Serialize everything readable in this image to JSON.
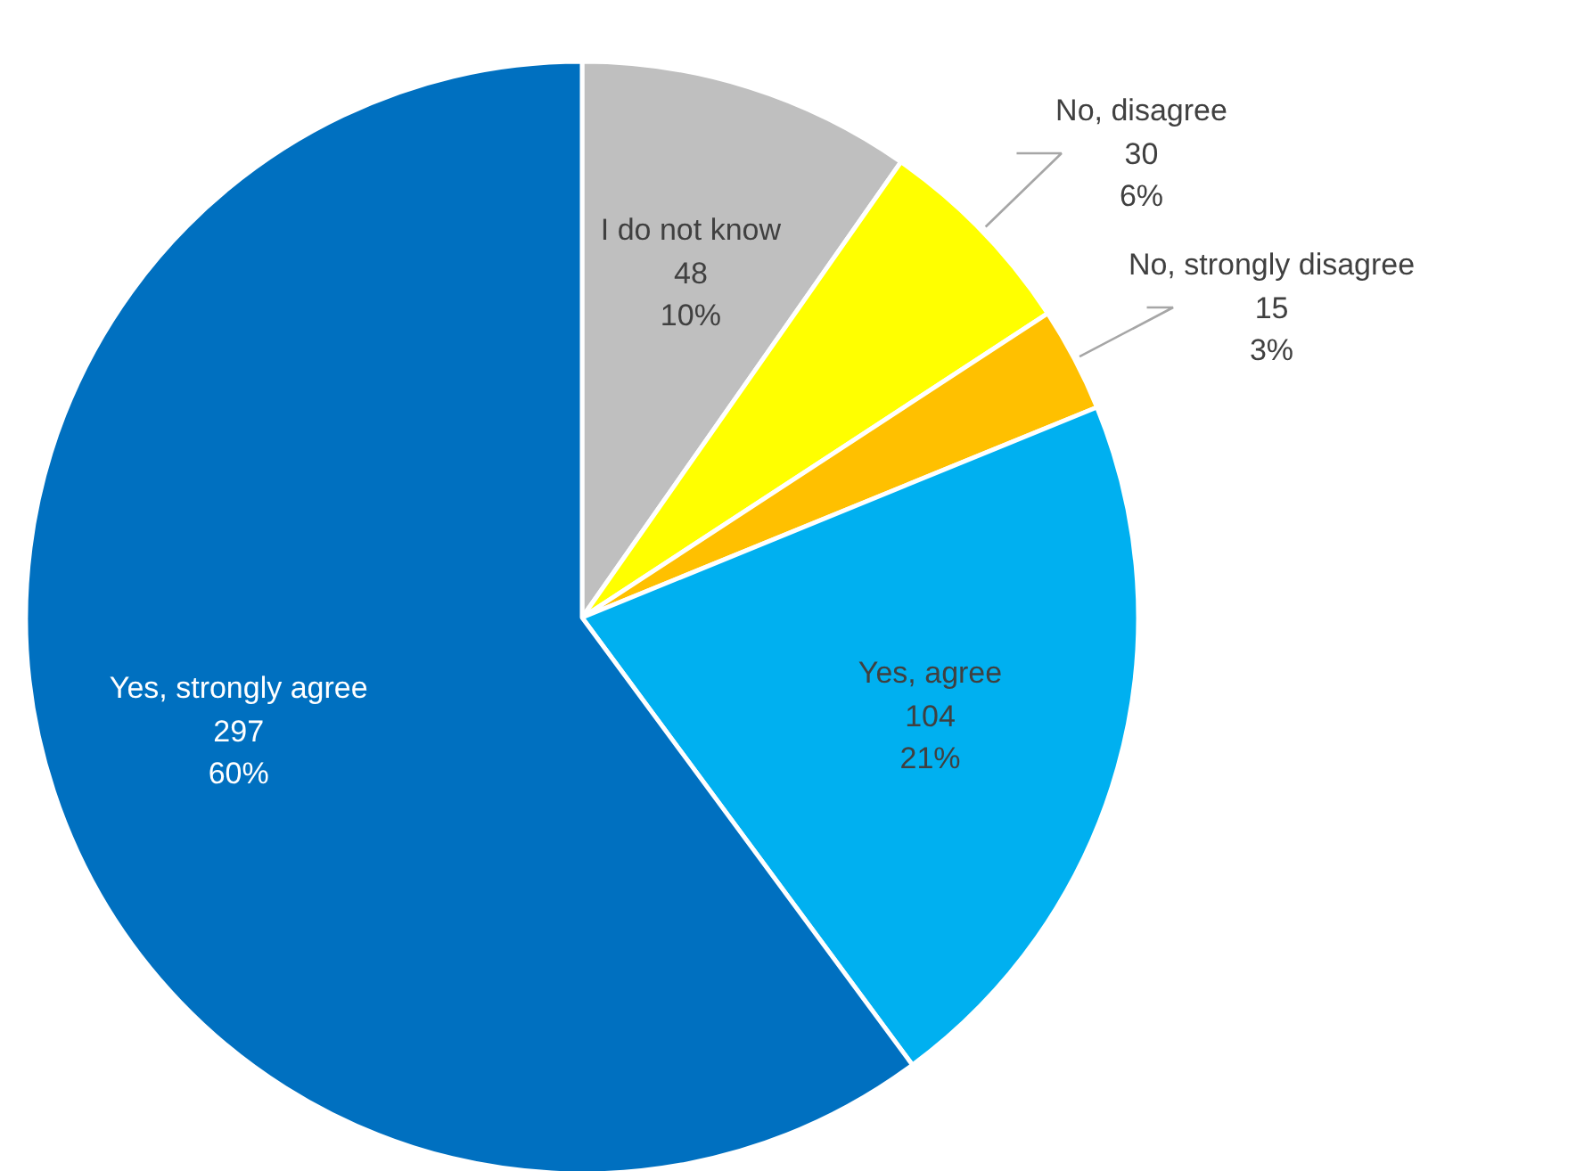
{
  "chart_data": {
    "type": "pie",
    "categories": [
      "I do not know",
      "No, disagree",
      "No, strongly disagree",
      "Yes, agree",
      "Yes, strongly agree"
    ],
    "values": [
      48,
      30,
      15,
      104,
      297
    ],
    "colors": [
      "#bfbfbf",
      "#ffff00",
      "#ffc000",
      "#00b0f0",
      "#0070c0"
    ],
    "value_labels": [
      "48\n10%",
      "30\n6%",
      "15\n3%",
      "104\n21%",
      "297\n60%"
    ]
  }
}
